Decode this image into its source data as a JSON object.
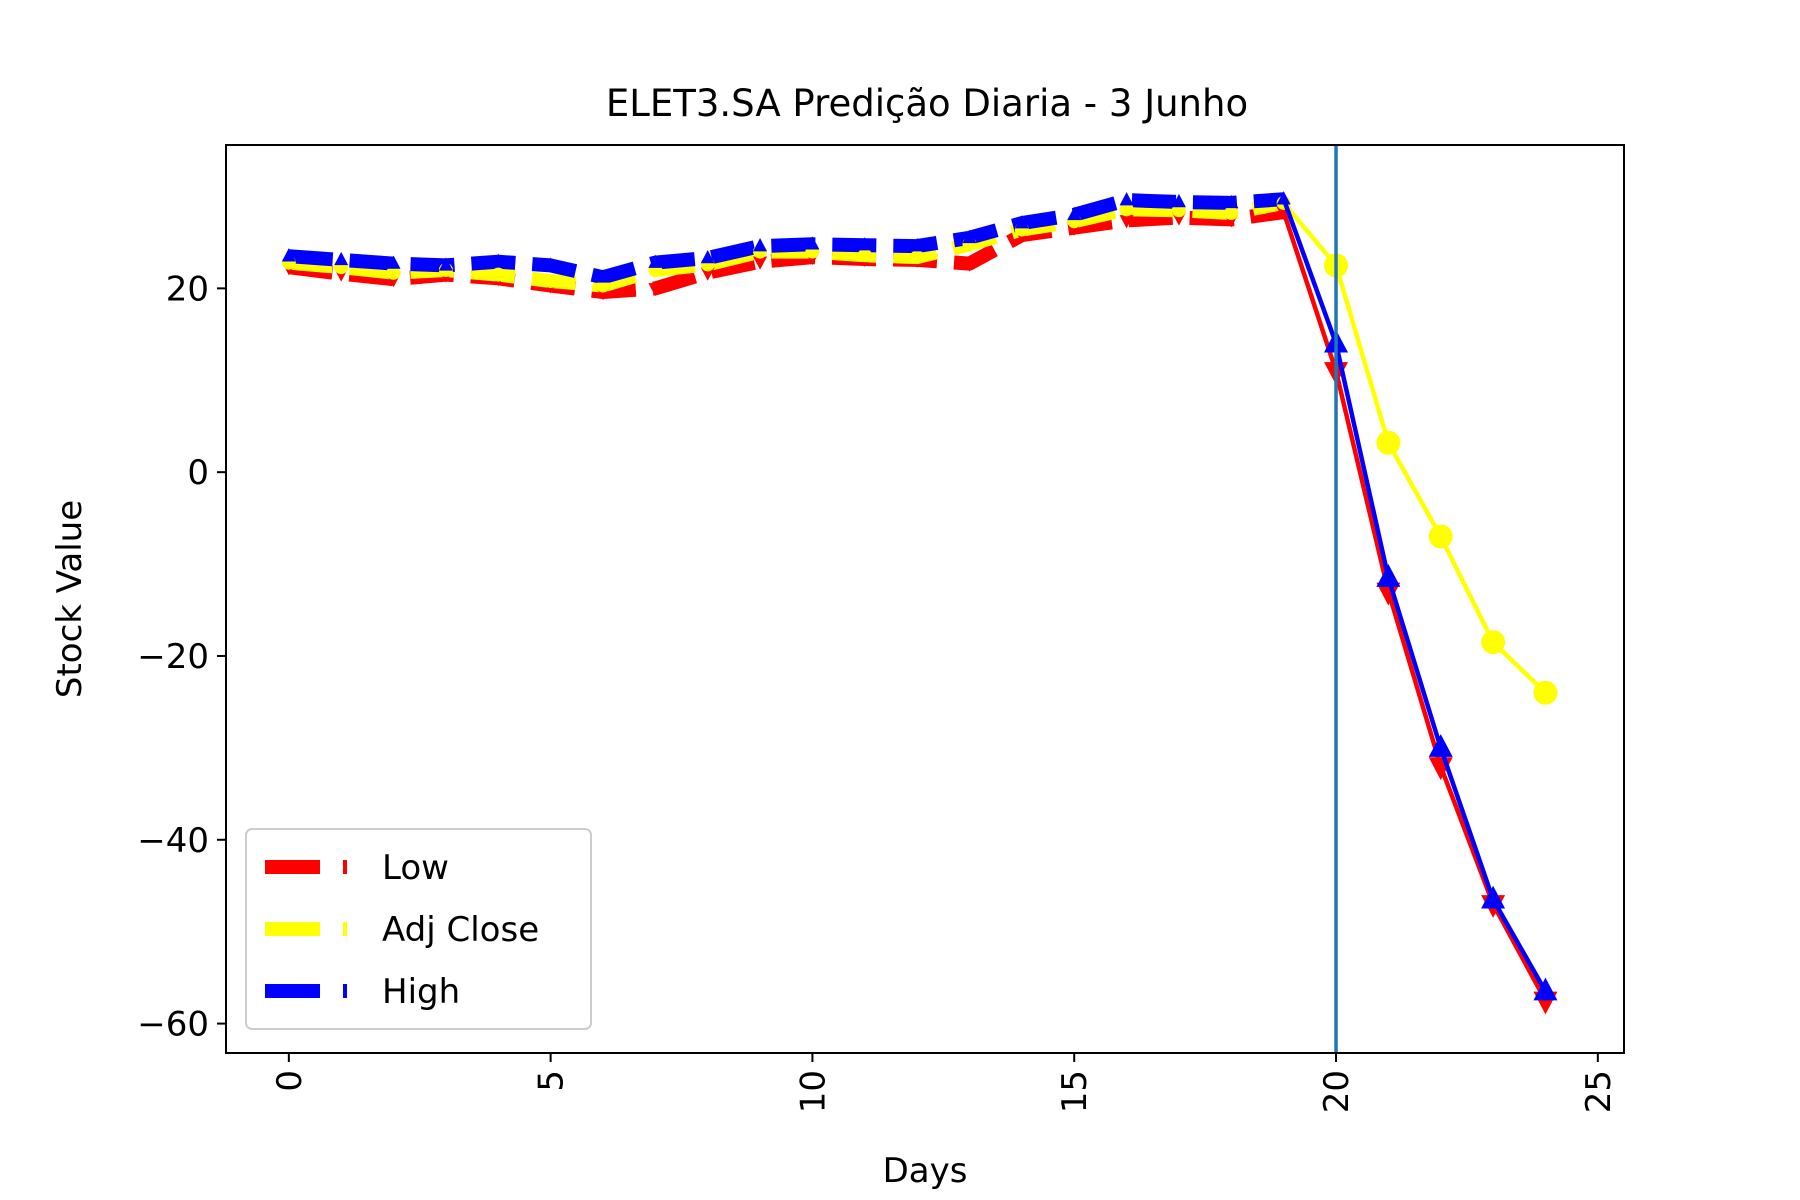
{
  "colors": {
    "low": "#ff0000",
    "adj_close": "#ffff00",
    "high": "#0000ff",
    "vline": "#1f77b4",
    "frame": "#000000"
  },
  "chart_data": {
    "type": "line",
    "title": "ELET3.SA Predição Diaria - 3 Junho",
    "xlabel": "Days",
    "ylabel": "Stock Value",
    "xlim": [
      -1.2,
      25.5
    ],
    "ylim": [
      -63.2,
      35.6
    ],
    "xticks": [
      0,
      5,
      10,
      15,
      20,
      25
    ],
    "yticks": [
      -60,
      -40,
      -20,
      0,
      20
    ],
    "tick_labels_x": [
      "0",
      "5",
      "10",
      "15",
      "20",
      "25"
    ],
    "tick_labels_y": [
      "−60",
      "−40",
      "−20",
      "0",
      "20"
    ],
    "x_tick_rotation": "vertical",
    "grid": false,
    "legend_position": "lower-left",
    "vertical_line_x": 20,
    "historical_style": "dashed",
    "prediction_style": "solid with markers",
    "series": [
      {
        "name": "Low",
        "color_key": "low",
        "marker": "triangle-down",
        "historical": {
          "x": [
            0,
            1,
            2,
            3,
            4,
            5,
            6,
            7,
            8,
            9,
            10,
            11,
            12,
            13,
            14,
            15,
            16,
            17,
            18,
            19
          ],
          "y": [
            22.3,
            21.6,
            21.0,
            21.5,
            21.1,
            20.3,
            19.6,
            20.0,
            21.7,
            22.9,
            23.4,
            23.2,
            23.1,
            22.7,
            25.8,
            26.6,
            27.4,
            27.7,
            27.5,
            28.3
          ]
        },
        "prediction": {
          "x": [
            19,
            20,
            21,
            22,
            23,
            24
          ],
          "y": [
            28.3,
            11.0,
            -13.0,
            -32.0,
            -47.0,
            -57.5
          ]
        }
      },
      {
        "name": "Adj Close",
        "color_key": "adj_close",
        "marker": "circle",
        "historical": {
          "x": [
            0,
            1,
            2,
            3,
            4,
            5,
            6,
            7,
            8,
            9,
            10,
            11,
            12,
            13,
            14,
            15,
            16,
            17,
            18,
            19
          ],
          "y": [
            22.8,
            22.3,
            21.7,
            22.0,
            21.5,
            20.8,
            20.3,
            22.0,
            22.6,
            24.0,
            24.0,
            23.6,
            23.4,
            24.8,
            26.4,
            27.3,
            28.6,
            28.5,
            28.2,
            29.3
          ]
        },
        "prediction": {
          "x": [
            19,
            20,
            21,
            22,
            23,
            24
          ],
          "y": [
            29.3,
            22.5,
            3.2,
            -7.0,
            -18.5,
            -24.0
          ]
        }
      },
      {
        "name": "High",
        "color_key": "high",
        "marker": "triangle-up",
        "historical": {
          "x": [
            0,
            1,
            2,
            3,
            4,
            5,
            6,
            7,
            8,
            9,
            10,
            11,
            12,
            13,
            14,
            15,
            16,
            17,
            18,
            19
          ],
          "y": [
            23.5,
            23.1,
            22.7,
            22.5,
            22.9,
            22.5,
            21.2,
            22.8,
            23.3,
            24.6,
            24.8,
            24.7,
            24.6,
            25.5,
            27.1,
            28.0,
            29.6,
            29.4,
            29.3,
            29.7
          ]
        },
        "prediction": {
          "x": [
            19,
            20,
            21,
            22,
            23,
            24
          ],
          "y": [
            29.7,
            14.0,
            -11.5,
            -30.0,
            -46.5,
            -56.5
          ]
        }
      }
    ]
  }
}
